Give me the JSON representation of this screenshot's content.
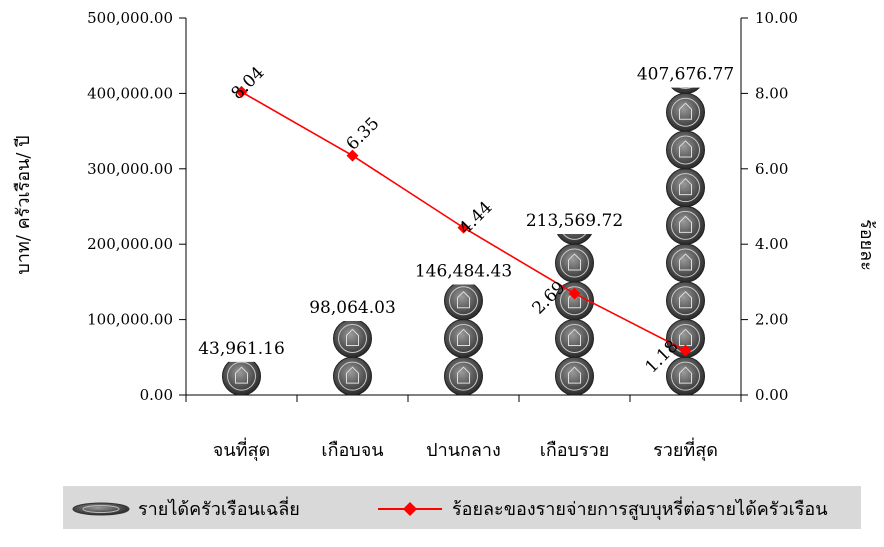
{
  "chart_data": {
    "type": "bar",
    "categories": [
      "จนที่สุด",
      "เกือบจน",
      "ปานกลาง",
      "เกือบรวย",
      "รวยที่สุด"
    ],
    "series": [
      {
        "name": "รายได้ครัวเรือนเฉลี่ย",
        "axis": "left",
        "kind": "bar",
        "values": [
          43961.16,
          98064.03,
          146484.43,
          213569.72,
          407676.77
        ],
        "value_labels": [
          "43,961.16",
          "98,064.03",
          "146,484.43",
          "213,569.72",
          "407,676.77"
        ],
        "color": "#555555",
        "marker_icon": "coin-icon"
      },
      {
        "name": "ร้อยละของรายจ่ายการสูบบุหรี่ต่อรายได้ครัวเรือน",
        "axis": "right",
        "kind": "line",
        "values": [
          8.04,
          6.35,
          4.44,
          2.69,
          1.18
        ],
        "value_labels": [
          "8.04",
          "6.35",
          "4.44",
          "2.69",
          "1.18"
        ],
        "color": "#ff0000",
        "marker": "diamond"
      }
    ],
    "ylabel": "บาท/ ครัวเรือน/ ปี",
    "y2label": "ร้อยละ",
    "ylim": [
      0,
      500000
    ],
    "y2lim": [
      0,
      10
    ],
    "yticks": [
      "0.00",
      "100,000.00",
      "200,000.00",
      "300,000.00",
      "400,000.00",
      "500,000.00"
    ],
    "y2ticks": [
      "0.00",
      "2.00",
      "4.00",
      "6.00",
      "8.00",
      "10.00"
    ],
    "grid": false,
    "legend_position": "bottom",
    "legend_background": "#d9d9d9"
  }
}
